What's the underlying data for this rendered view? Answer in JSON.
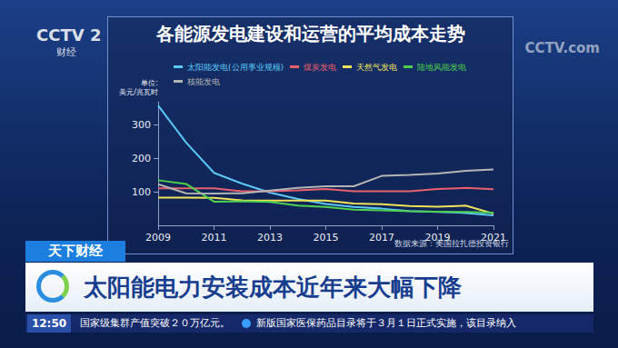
{
  "chart_data": {
    "type": "line",
    "title": "各能源发电建设和运营的平均成本走势",
    "y_label": "单位:美元/兆瓦时",
    "source": "数据来源：美国拉扎德投资银行",
    "x": [
      2009,
      2010,
      2011,
      2012,
      2013,
      2014,
      2015,
      2016,
      2017,
      2018,
      2019,
      2020,
      2021
    ],
    "xlim": [
      2009,
      2021
    ],
    "xticks": [
      2009,
      2011,
      2013,
      2015,
      2017,
      2019,
      2021
    ],
    "ylim": [
      0,
      370
    ],
    "yticks": [
      100,
      200,
      300
    ],
    "grid": false,
    "legend": "top",
    "series": [
      {
        "name": "太阳能发电(公用事业规模)",
        "color": "#5cc8f5",
        "values": [
          359,
          248,
          157,
          125,
          98,
          79,
          64,
          55,
          50,
          43,
          40,
          37,
          30
        ]
      },
      {
        "name": "煤炭发电",
        "color": "#e8606c",
        "values": [
          111,
          111,
          111,
          102,
          102,
          105,
          109,
          102,
          102,
          102,
          109,
          112,
          108
        ]
      },
      {
        "name": "天然气发电",
        "color": "#f2e45a",
        "values": [
          83,
          83,
          82,
          75,
          74,
          74,
          74,
          65,
          63,
          58,
          56,
          59,
          35
        ]
      },
      {
        "name": "陆地风能发电",
        "color": "#4fd04f",
        "values": [
          135,
          124,
          71,
          72,
          70,
          59,
          55,
          47,
          45,
          42,
          41,
          40,
          38
        ]
      },
      {
        "name": "核能发电",
        "color": "#b4b4b4",
        "values": [
          123,
          96,
          95,
          96,
          104,
          112,
          117,
          117,
          148,
          151,
          155,
          163,
          167
        ]
      }
    ]
  },
  "broadcast": {
    "channel_logo": "CCTV 2",
    "channel_name": "财经",
    "watermark": "CCTV.com",
    "program": "天下财经",
    "headline": "太阳能电力安装成本近年来大幅下降",
    "time": "12:50",
    "ticker": [
      "国家级集群产值突破２０万亿元。",
      "新版国家医保药品目录将于３月１日正式实施，该目录纳入"
    ]
  }
}
